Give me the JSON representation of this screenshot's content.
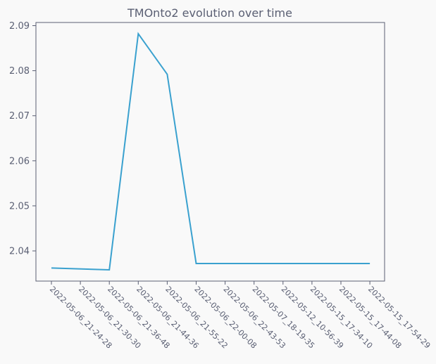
{
  "chart_data": {
    "type": "line",
    "title": "TMOnto2 evolution over time",
    "xlabel": "",
    "ylabel": "",
    "x": [
      "2022-05-06_21-24-28",
      "2022-05-06_21-30-30",
      "2022-05-06_21-36-48",
      "2022-05-06_21-44-36",
      "2022-05-06_21-55-22",
      "2022-05-06_22-00-08",
      "2022-05-06_22-43-53",
      "2022-05-07_18-19-35",
      "2022-05-12_10-56-39",
      "2022-05-15_17-34-10",
      "2022-05-15_17-44-08",
      "2022-05-15_17-54-29"
    ],
    "points": [
      {
        "xi": 0,
        "y": 2.0362
      },
      {
        "xi": 2,
        "y": 2.0358
      },
      {
        "xi": 3,
        "y": 2.0882
      },
      {
        "xi": 4,
        "y": 2.0792
      },
      {
        "xi": 5,
        "y": 2.0372
      },
      {
        "xi": 11,
        "y": 2.0372
      }
    ],
    "ylim": [
      2.0333,
      2.0907
    ],
    "yticks": [
      "2.04",
      "2.05",
      "2.06",
      "2.07",
      "2.08",
      "2.09"
    ],
    "ytick_values": [
      2.04,
      2.05,
      2.06,
      2.07,
      2.08,
      2.09
    ],
    "line_color": "#3aa1cf",
    "axis_color": "#5a5f73",
    "text_color": "#5a5f73",
    "grid": false,
    "legend": "none"
  }
}
